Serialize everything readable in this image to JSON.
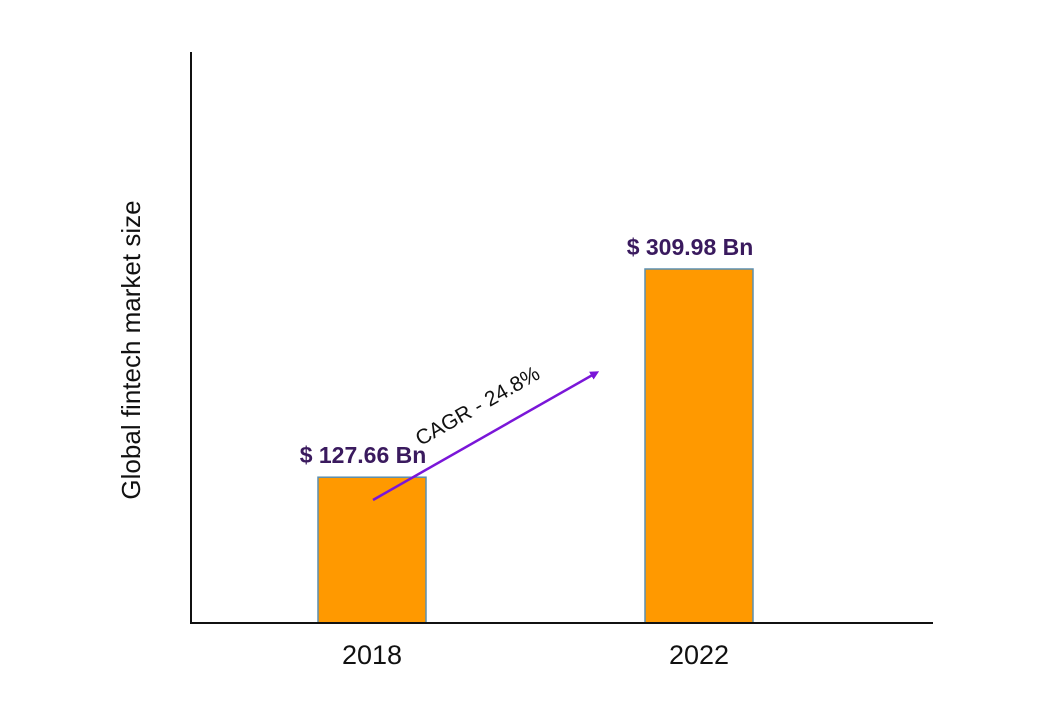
{
  "chart_data": {
    "type": "bar",
    "title": "",
    "xlabel": "",
    "ylabel": "Global fintech market size",
    "categories": [
      "2018",
      "2022"
    ],
    "values": [
      127.66,
      309.98
    ],
    "value_labels": [
      "$ 127.66 Bn",
      "$ 309.98 Bn"
    ],
    "ylim": [
      0,
      500
    ],
    "grid": false,
    "legend": "none",
    "annotation": {
      "text": "CAGR - 24.8%",
      "from_category": "2018",
      "to_category": "2022"
    },
    "colors": {
      "bar_fill": "#FF9900",
      "bar_stroke": "#5b8fb0",
      "value_label": "#3a1a5e",
      "arrow": "#7a16d8",
      "axis": "#111111",
      "text": "#111111"
    }
  }
}
